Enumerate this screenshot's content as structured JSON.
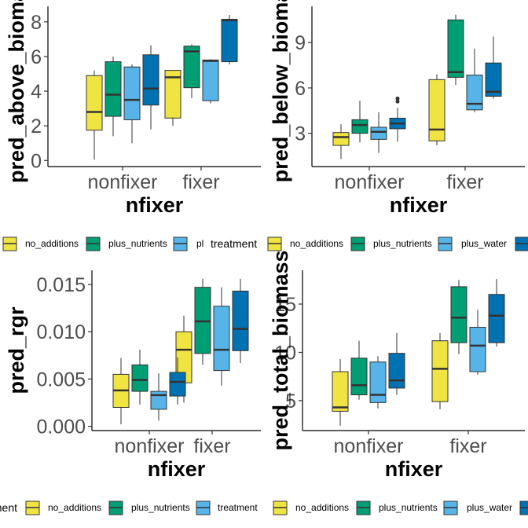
{
  "colors": {
    "no_additions": "#f0e442",
    "plus_nutrients": "#009e73",
    "plus_water": "#56b4e9",
    "plus_both": "#0072b2"
  },
  "chart_data": [
    {
      "type": "box",
      "xlabel": "nfixer",
      "ylabel": "pred_above_bioma",
      "categories": [
        "nonfixer",
        "fixer"
      ],
      "yticks": [
        0,
        2,
        4,
        6,
        8
      ],
      "ylim": [
        -0.35,
        8.9
      ],
      "series": [
        {
          "key": "no_additions",
          "boxes": [
            {
              "min": 0.05,
              "q1": 1.75,
              "median": 2.8,
              "q3": 4.9,
              "max": 5.2
            },
            {
              "min": 2.0,
              "q1": 2.45,
              "median": 4.8,
              "q3": 5.2,
              "max": 5.2
            }
          ]
        },
        {
          "key": "plus_nutrients",
          "boxes": [
            {
              "min": 1.4,
              "q1": 2.55,
              "median": 3.8,
              "q3": 5.7,
              "max": 6.0
            },
            {
              "min": 3.6,
              "q1": 4.2,
              "median": 6.3,
              "q3": 6.6,
              "max": 6.7
            }
          ]
        },
        {
          "key": "plus_water",
          "boxes": [
            {
              "min": 1.0,
              "q1": 2.35,
              "median": 3.5,
              "q3": 5.4,
              "max": 5.55
            },
            {
              "min": 3.3,
              "q1": 3.45,
              "median": 5.75,
              "q3": 5.8,
              "max": 5.85
            }
          ]
        },
        {
          "key": "plus_both",
          "boxes": [
            {
              "min": 1.8,
              "q1": 3.2,
              "median": 4.15,
              "q3": 6.1,
              "max": 6.65
            },
            {
              "min": 5.55,
              "q1": 5.7,
              "median": 8.1,
              "q3": 8.15,
              "max": 8.4
            }
          ]
        }
      ],
      "legend": {
        "title": "",
        "items": [
          {
            "key": "no_additions",
            "label": "no_additions"
          },
          {
            "key": "plus_nutrients",
            "label": "plus_nutrients"
          },
          {
            "key": "plus_water",
            "label": "pl"
          }
        ]
      },
      "legend_title_right": "treatment"
    },
    {
      "type": "box",
      "xlabel": "nfixer",
      "ylabel": "pred_below_bioma",
      "categories": [
        "nonfixer",
        "fixer"
      ],
      "yticks": [
        3,
        6,
        9
      ],
      "ylim": [
        0.8,
        11.4
      ],
      "series": [
        {
          "key": "no_additions",
          "boxes": [
            {
              "min": 1.3,
              "q1": 2.2,
              "median": 2.75,
              "q3": 3.05,
              "max": 3.6
            },
            {
              "min": 2.2,
              "q1": 2.5,
              "median": 3.25,
              "q3": 6.55,
              "max": 6.9
            }
          ]
        },
        {
          "key": "plus_nutrients",
          "boxes": [
            {
              "min": 2.4,
              "q1": 3.0,
              "median": 3.55,
              "q3": 3.9,
              "max": 5.15
            },
            {
              "min": 6.2,
              "q1": 6.7,
              "median": 7.05,
              "q3": 10.5,
              "max": 10.85
            }
          ]
        },
        {
          "key": "plus_water",
          "boxes": [
            {
              "min": 1.7,
              "q1": 2.6,
              "median": 3.1,
              "q3": 3.4,
              "max": 4.4
            },
            {
              "min": 4.4,
              "q1": 4.55,
              "median": 4.95,
              "q3": 6.85,
              "max": 8.6
            }
          ]
        },
        {
          "key": "plus_both",
          "boxes": [
            {
              "min": 2.45,
              "q1": 3.3,
              "median": 3.65,
              "q3": 4.0,
              "max": 4.7,
              "outliers": [
                5.1,
                5.3
              ]
            },
            {
              "min": 5.3,
              "q1": 5.45,
              "median": 5.75,
              "q3": 7.65,
              "max": 9.4
            }
          ]
        }
      ],
      "legend": {
        "title": "",
        "items": [
          {
            "key": "no_additions",
            "label": "no_additions"
          },
          {
            "key": "plus_nutrients",
            "label": "plus_nutrients"
          },
          {
            "key": "plus_water",
            "label": "plus_water"
          },
          {
            "key": "plus_both",
            "label": ""
          }
        ]
      }
    },
    {
      "type": "box",
      "xlabel": "nfixer",
      "ylabel": "pred_rgr",
      "categories": [
        "nonfixer",
        "fixer"
      ],
      "yticks": [
        0.0,
        0.005,
        0.01,
        0.015
      ],
      "ytick_labels": [
        "0.000",
        "0.005",
        "0.010",
        "0.015"
      ],
      "ylim": [
        -0.00045,
        0.0165
      ],
      "series": [
        {
          "key": "no_additions",
          "boxes": [
            {
              "min": 0.0002,
              "q1": 0.002,
              "median": 0.0038,
              "q3": 0.0055,
              "max": 0.0072
            },
            {
              "min": 0.0025,
              "q1": 0.0046,
              "median": 0.0081,
              "q3": 0.01,
              "max": 0.0117
            }
          ]
        },
        {
          "key": "plus_nutrients",
          "boxes": [
            {
              "min": 0.0023,
              "q1": 0.0037,
              "median": 0.0049,
              "q3": 0.0065,
              "max": 0.0081
            },
            {
              "min": 0.0065,
              "q1": 0.0077,
              "median": 0.0111,
              "q3": 0.0147,
              "max": 0.0156
            }
          ]
        },
        {
          "key": "plus_water",
          "boxes": [
            {
              "min": 0.0006,
              "q1": 0.0018,
              "median": 0.0033,
              "q3": 0.0037,
              "max": 0.0056
            },
            {
              "min": 0.0043,
              "q1": 0.0059,
              "median": 0.0081,
              "q3": 0.0127,
              "max": 0.0147
            }
          ]
        },
        {
          "key": "plus_both",
          "boxes": [
            {
              "min": 0.0023,
              "q1": 0.0032,
              "median": 0.0047,
              "q3": 0.0057,
              "max": 0.0073
            },
            {
              "min": 0.0067,
              "q1": 0.008,
              "median": 0.0103,
              "q3": 0.0143,
              "max": 0.0156
            }
          ]
        }
      ],
      "legend": {
        "title": "",
        "items": [
          {
            "key": "no_additions",
            "label": "no_additions"
          },
          {
            "key": "plus_nutrients",
            "label": "plus_nutrients"
          },
          {
            "key": "plus_water",
            "label": "treatment"
          }
        ]
      },
      "legend_title_left": "ment"
    },
    {
      "type": "box",
      "xlabel": "nfixer",
      "ylabel": "pred_total_biomass",
      "categories": [
        "nonfixer",
        "fixer"
      ],
      "yticks": [
        5,
        10,
        15
      ],
      "ytick_labels": [
        "5",
        "10",
        "15"
      ],
      "ylim": [
        1.9,
        18.5
      ],
      "series": [
        {
          "key": "no_additions",
          "boxes": [
            {
              "min": 2.4,
              "q1": 3.9,
              "median": 4.3,
              "q3": 8.0,
              "max": 9.3
            },
            {
              "min": 4.1,
              "q1": 4.9,
              "median": 8.3,
              "q3": 11.2,
              "max": 12.0
            }
          ]
        },
        {
          "key": "plus_nutrients",
          "boxes": [
            {
              "min": 5.1,
              "q1": 5.6,
              "median": 6.6,
              "q3": 9.4,
              "max": 11.2
            },
            {
              "min": 9.8,
              "q1": 11.0,
              "median": 13.6,
              "q3": 16.8,
              "max": 17.5
            }
          ]
        },
        {
          "key": "plus_water",
          "boxes": [
            {
              "min": 4.2,
              "q1": 4.8,
              "median": 5.6,
              "q3": 9.0,
              "max": 9.6
            },
            {
              "min": 7.7,
              "q1": 8.0,
              "median": 10.7,
              "q3": 12.6,
              "max": 14.4
            }
          ]
        },
        {
          "key": "plus_both",
          "boxes": [
            {
              "min": 5.6,
              "q1": 6.3,
              "median": 7.1,
              "q3": 9.9,
              "max": 12.0
            },
            {
              "min": 10.6,
              "q1": 11.0,
              "median": 13.8,
              "q3": 16.0,
              "max": 17.6
            }
          ]
        }
      ],
      "legend": {
        "title": "",
        "items": [
          {
            "key": "no_additions",
            "label": "no_additions"
          },
          {
            "key": "plus_nutrients",
            "label": "plus_nutrients"
          },
          {
            "key": "plus_water",
            "label": "plus_water"
          },
          {
            "key": "plus_both",
            "label": ""
          }
        ]
      }
    }
  ]
}
